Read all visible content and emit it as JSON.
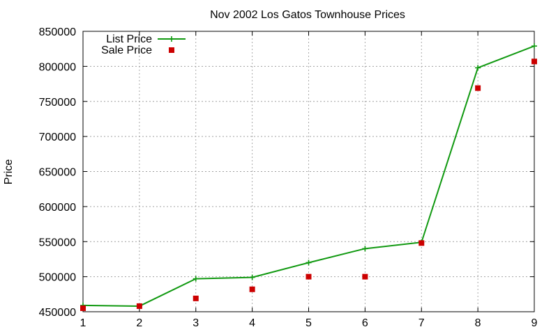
{
  "chart_data": {
    "type": "line",
    "title": "Nov 2002 Los Gatos Townhouse Prices",
    "xlabel": "",
    "ylabel": "Price",
    "x": [
      1,
      2,
      3,
      4,
      5,
      6,
      7,
      8,
      9
    ],
    "xlim": [
      1,
      9
    ],
    "ylim": [
      450000,
      850000
    ],
    "xticks": [
      1,
      2,
      3,
      4,
      5,
      6,
      7,
      8,
      9
    ],
    "yticks": [
      450000,
      500000,
      550000,
      600000,
      650000,
      700000,
      750000,
      800000,
      850000
    ],
    "grid": true,
    "legend_position": "top-left",
    "series": [
      {
        "name": "List Price",
        "style": "line-points",
        "marker": "plus",
        "color": "#109910",
        "values": [
          459000,
          458000,
          497000,
          499000,
          520000,
          540000,
          549000,
          798000,
          829000
        ]
      },
      {
        "name": "Sale Price",
        "style": "points",
        "marker": "square",
        "color": "#cc0000",
        "values": [
          455000,
          458000,
          469000,
          482000,
          500000,
          500000,
          548000,
          769000,
          807000
        ]
      }
    ]
  }
}
